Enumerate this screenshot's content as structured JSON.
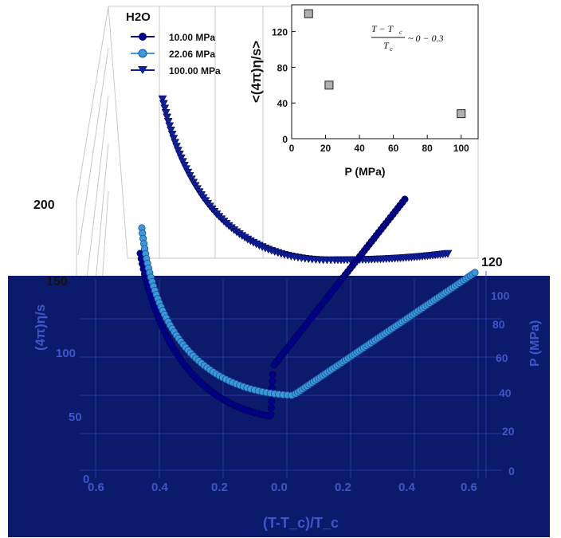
{
  "chart_data": [
    {
      "type": "scatter",
      "title": "",
      "axes": {
        "x": {
          "label": "(T-T_c)/T_c",
          "ticks": [
            "0.6",
            "0.4",
            "0.2",
            "0.0",
            "0.2",
            "0.4",
            "0.6"
          ]
        },
        "y": {
          "label": "P (MPa)",
          "ticks": [
            "0",
            "20",
            "40",
            "60",
            "80",
            "100",
            "120"
          ]
        },
        "z": {
          "label": "(4π)η/s",
          "ticks": [
            "0",
            "50",
            "100",
            "150",
            "200"
          ]
        }
      },
      "legend_title": "H2O",
      "legend_placement": "top-left",
      "series": [
        {
          "name": "10.00 MPa",
          "color": "#00008b",
          "marker": "circle"
        },
        {
          "name": "22.06 MPa",
          "color": "#3a9ad8",
          "marker": "circle"
        },
        {
          "name": "100.00 MPa",
          "color": "#0d1f9e",
          "marker": "triangle-down"
        }
      ],
      "panel_background": "#0b1a6b"
    },
    {
      "type": "scatter",
      "title": "",
      "xlabel": "P (MPa)",
      "ylabel": "<(4π)η/s>",
      "xlim": [
        0,
        110
      ],
      "ylim": [
        0,
        150
      ],
      "xticks": [
        "0",
        "20",
        "40",
        "60",
        "80",
        "100"
      ],
      "yticks": [
        "0",
        "40",
        "80",
        "120"
      ],
      "x": [
        10,
        22.06,
        100
      ],
      "y": [
        140,
        60,
        28
      ],
      "marker_color": "#b0b0b0",
      "annotation": {
        "lhs_numerator": "T − T",
        "lhs_denominator": "T",
        "sub": "c",
        "rhs": "~ 0 − 0.3"
      }
    }
  ]
}
